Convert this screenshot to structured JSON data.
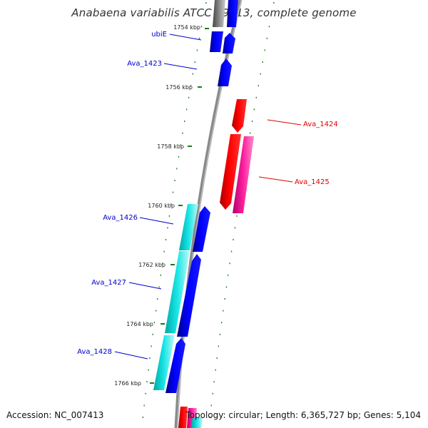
{
  "title": "Anabaena variabilis ATCC 29413, complete genome",
  "footer": {
    "accession": "Accession: NC_007413",
    "summary": "Topology: circular; Length: 6,365,727 bp; Genes: 5,104"
  },
  "colors": {
    "forward_cds": "#0000ee",
    "forward_paired": "#00c8c8",
    "reverse_cds": "#ee0000",
    "reverse_paired": "#e0108c",
    "tick": "#1a7a1a",
    "backbone": "#8a8a8a",
    "forward_label": "#0000cc",
    "reverse_label": "#dd0000"
  },
  "ticks": [
    "1754 kbp",
    "1756 kbp",
    "1758 kbp",
    "1760 kbp",
    "1762 kbp",
    "1764 kbp",
    "1766 kbp"
  ],
  "genes_forward": [
    "ubiE",
    "Ava_1423",
    "Ava_1426",
    "Ava_1427",
    "Ava_1428"
  ],
  "genes_reverse": [
    "Ava_1424",
    "Ava_1425"
  ]
}
